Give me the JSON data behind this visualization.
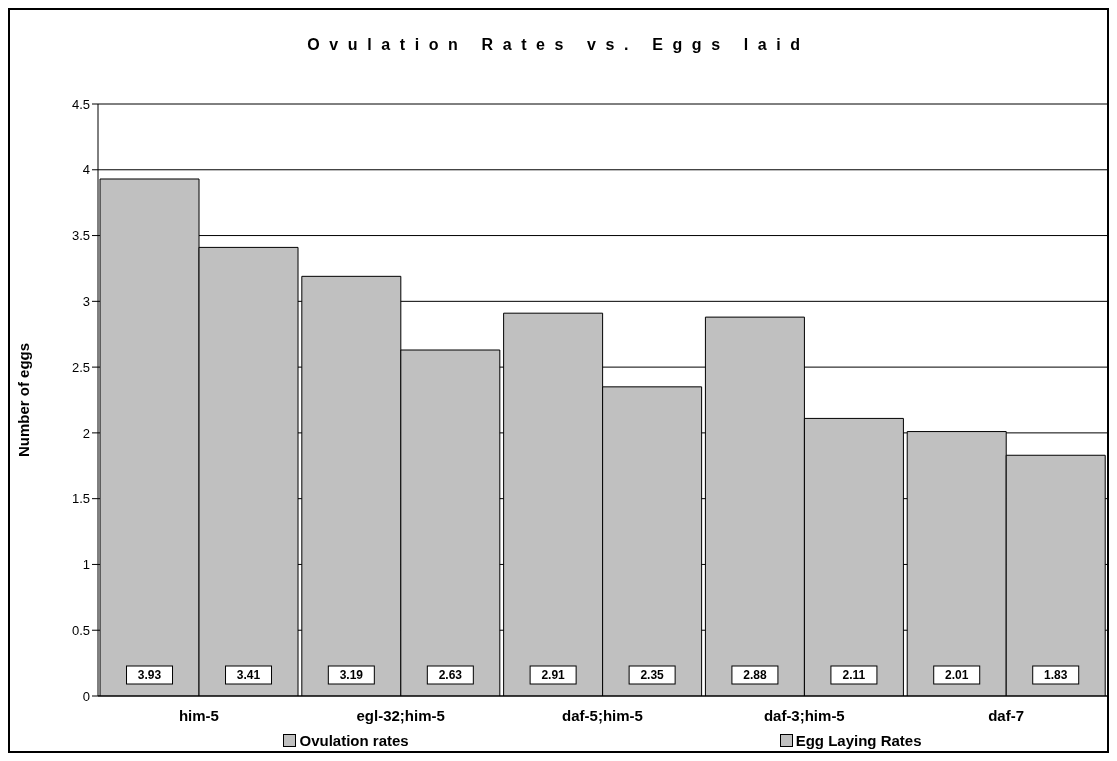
{
  "chart_data": {
    "type": "bar",
    "title": "Ovulation Rates vs. Eggs laid",
    "ylabel": "Number of eggs",
    "categories": [
      "him-5",
      "egl-32;him-5",
      "daf-5;him-5",
      "daf-3;him-5",
      "daf-7"
    ],
    "series": [
      {
        "name": "Ovulation rates",
        "color": "#c0c0c0",
        "values": [
          3.93,
          3.19,
          2.91,
          2.88,
          2.01
        ]
      },
      {
        "name": "Egg Laying Rates",
        "color": "#c0c0c0",
        "values": [
          3.41,
          2.63,
          2.35,
          2.11,
          1.83
        ]
      }
    ],
    "ylim": [
      0,
      4.5
    ],
    "yticks": [
      0,
      0.5,
      1,
      1.5,
      2,
      2.5,
      3,
      3.5,
      4,
      4.5
    ],
    "grid": "y",
    "legend": "bottom",
    "data_labels": true
  }
}
